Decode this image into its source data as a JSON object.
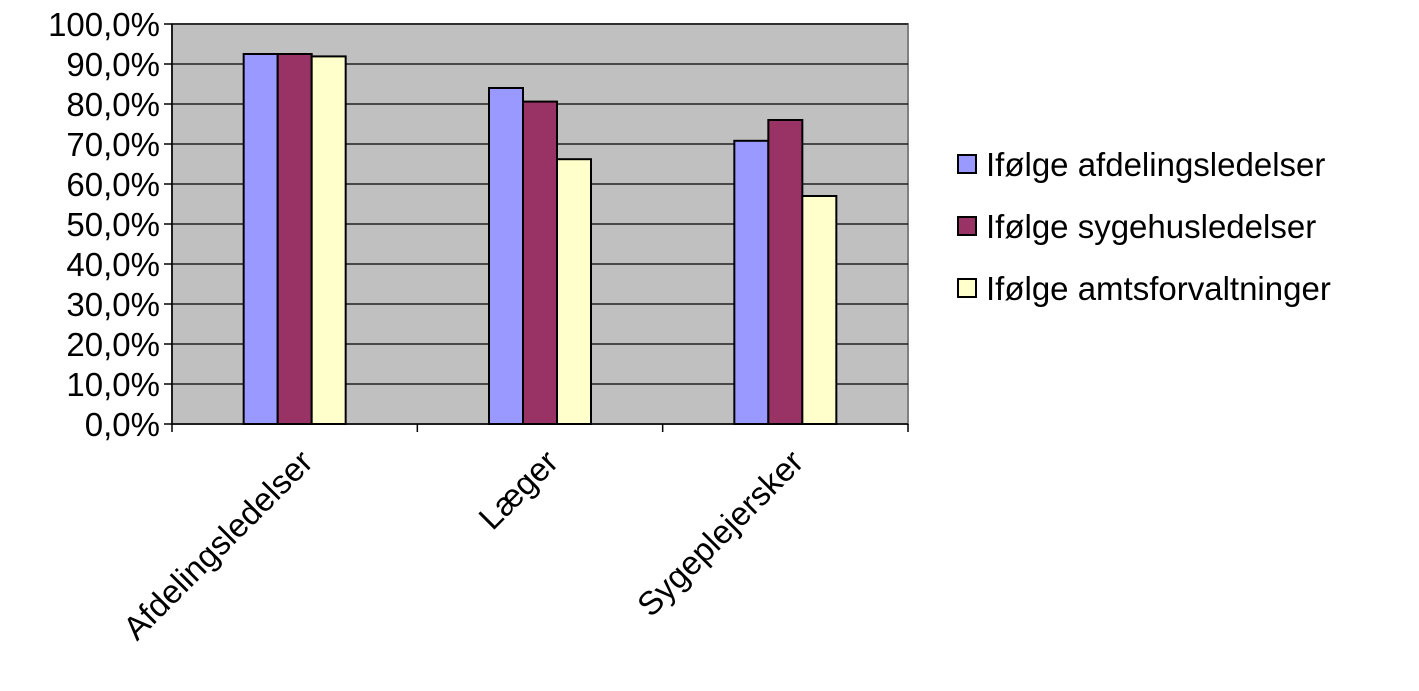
{
  "chart_data": {
    "type": "bar",
    "categories": [
      "Afdelingsledelser",
      "Læger",
      "Sygeplejersker"
    ],
    "series": [
      {
        "name": "Ifølge afdelingsledelser",
        "values": [
          92.5,
          84.0,
          70.8
        ],
        "color": "#9999FF"
      },
      {
        "name": "Ifølge sygehusledelser",
        "values": [
          92.5,
          80.6,
          76.0
        ],
        "color": "#993366"
      },
      {
        "name": "Ifølge amtsforvaltninger",
        "values": [
          91.9,
          66.2,
          57.0
        ],
        "color": "#FFFFCC"
      }
    ],
    "y_ticks": [
      "0,0%",
      "10,0%",
      "20,0%",
      "30,0%",
      "40,0%",
      "50,0%",
      "60,0%",
      "70,0%",
      "80,0%",
      "90,0%",
      "100,0%"
    ],
    "ylim": [
      0,
      100
    ],
    "grid": true,
    "plot_background": "#C0C0C0",
    "legend_position": "right"
  }
}
